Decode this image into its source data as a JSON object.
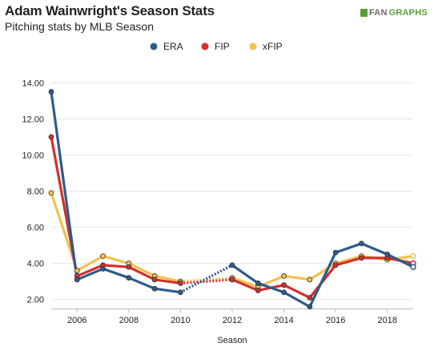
{
  "header": {
    "title": "Adam Wainwright's Season Stats",
    "subtitle": "Pitching stats by MLB Season",
    "brand_prefix": "FAN",
    "brand_suffix": "GRAPHS"
  },
  "colors": {
    "ERA": "#2e5b8c",
    "FIP": "#d0312d",
    "xFIP": "#f2c14e",
    "gridline": "#e6e6e6",
    "brand": "#5a9e3c"
  },
  "chart_data": {
    "type": "line",
    "xlabel": "Season",
    "ylabel": "",
    "x": [
      2005,
      2006,
      2007,
      2008,
      2009,
      2010,
      2012,
      2013,
      2014,
      2015,
      2016,
      2017,
      2018,
      2019
    ],
    "xticks": [
      2006,
      2008,
      2010,
      2012,
      2014,
      2016,
      2018
    ],
    "xlim": [
      2005,
      2019
    ],
    "ylim": [
      1.5,
      14.5
    ],
    "yticks": [
      2,
      4,
      6,
      8,
      10,
      12,
      14
    ],
    "ytick_labels": [
      "2.00",
      "4.00",
      "6.00",
      "8.00",
      "10.00",
      "12.00",
      "14.00"
    ],
    "legend_position": "top-center",
    "gap_segment": [
      2010,
      2012
    ],
    "series": [
      {
        "name": "ERA",
        "values": [
          13.5,
          3.1,
          3.7,
          3.2,
          2.6,
          2.4,
          3.9,
          2.9,
          2.4,
          1.6,
          4.6,
          5.1,
          4.5,
          3.8
        ]
      },
      {
        "name": "FIP",
        "values": [
          11.0,
          3.3,
          3.9,
          3.8,
          3.1,
          2.9,
          3.1,
          2.5,
          2.8,
          2.1,
          3.9,
          4.3,
          4.3,
          4.0
        ]
      },
      {
        "name": "xFIP",
        "values": [
          7.9,
          3.6,
          4.4,
          4.0,
          3.3,
          3.0,
          3.2,
          2.7,
          3.3,
          3.1,
          4.0,
          4.4,
          4.2,
          4.4
        ]
      }
    ]
  }
}
